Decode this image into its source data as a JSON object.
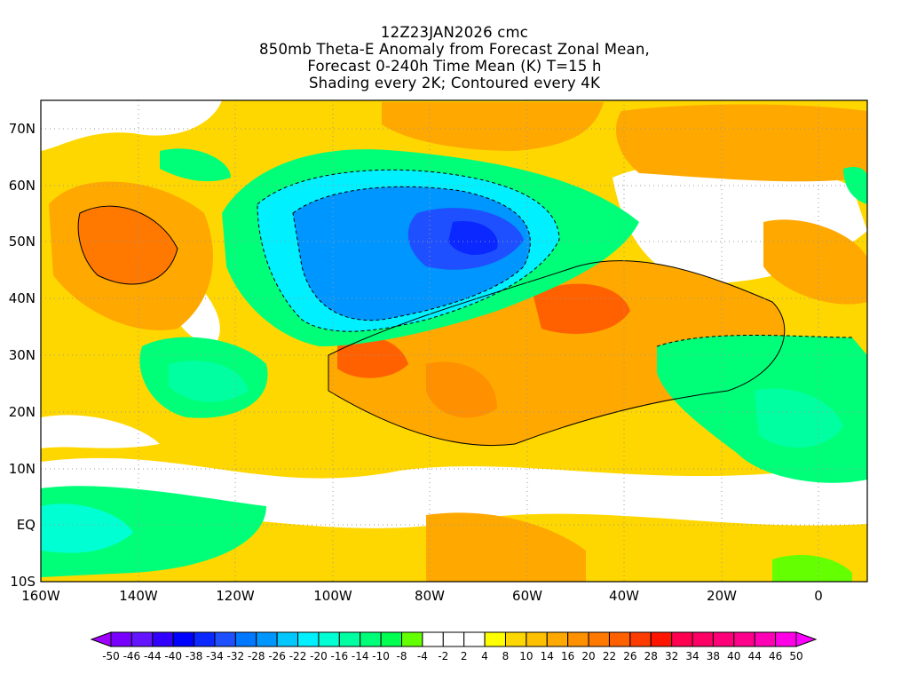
{
  "title": {
    "line1": "12Z23JAN2026 cmc",
    "line2": "850mb Theta-E Anomaly from Forecast Zonal Mean,",
    "line3": "Forecast 0-240h Time Mean (K) T=15 h",
    "line4": "Shading every 2K; Contoured every 4K"
  },
  "axes": {
    "lat_labels": [
      "70N",
      "60N",
      "50N",
      "40N",
      "30N",
      "20N",
      "10N",
      "EQ",
      "10S"
    ],
    "lon_labels": [
      "160W",
      "140W",
      "120W",
      "100W",
      "80W",
      "60W",
      "40W",
      "20W",
      "0"
    ]
  },
  "colorbar": {
    "low_arrow_color": "#a000ff",
    "high_arrow_color": "#ff00ff",
    "colors": [
      "#7800ff",
      "#6414ff",
      "#3200ff",
      "#0000ff",
      "#0a28ff",
      "#1e50ff",
      "#0078ff",
      "#0096ff",
      "#00c8ff",
      "#00f0ff",
      "#00ffd2",
      "#00ffa0",
      "#00ff78",
      "#00ff50",
      "#64ff00",
      "#ffffff",
      "#ffffff",
      "#ffffff",
      "#ffff00",
      "#ffd700",
      "#ffc000",
      "#ffa800",
      "#ff9000",
      "#ff7800",
      "#ff6000",
      "#ff3c00",
      "#ff1400",
      "#ff0050",
      "#ff0064",
      "#ff0078",
      "#ff008c",
      "#ff00b4",
      "#ff00e6"
    ],
    "labels": [
      "-50",
      "-46",
      "-44",
      "-40",
      "-38",
      "-34",
      "-32",
      "-28",
      "-26",
      "-22",
      "-20",
      "-16",
      "-14",
      "-10",
      "-8",
      "-4",
      "-2",
      "2",
      "4",
      "8",
      "10",
      "14",
      "16",
      "20",
      "22",
      "26",
      "28",
      "32",
      "34",
      "38",
      "40",
      "44",
      "46",
      "50"
    ]
  }
}
